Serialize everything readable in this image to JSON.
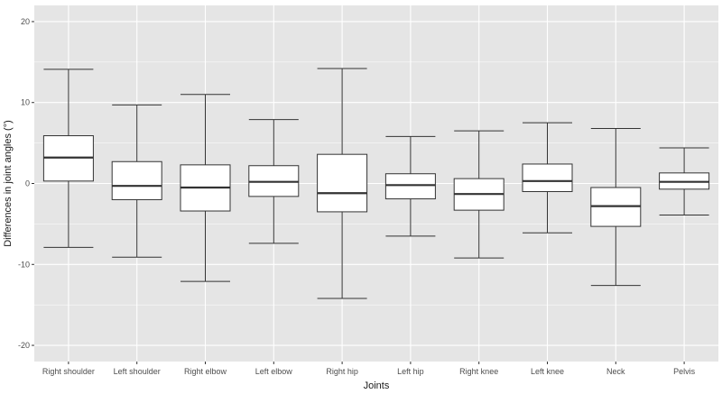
{
  "chart_data": {
    "type": "boxplot",
    "xlabel": "Joints",
    "ylabel": "Differences in joint angles (°)",
    "ylim": [
      -22,
      22
    ],
    "y_ticks": [
      -20,
      -10,
      0,
      10,
      20
    ],
    "grid": true,
    "colors": {
      "panel_bg": "#e5e5e5",
      "grid_major": "#ffffff",
      "box_fill": "#ffffff",
      "box_stroke": "#333333"
    },
    "categories": [
      "Right shoulder",
      "Left shoulder",
      "Right elbow",
      "Left elbow",
      "Right hip",
      "Left hip",
      "Right knee",
      "Left knee",
      "Neck",
      "Pelvis"
    ],
    "boxes": [
      {
        "label": "Right shoulder",
        "min": -7.9,
        "q1": 0.3,
        "median": 3.2,
        "q3": 5.9,
        "max": 14.1
      },
      {
        "label": "Left shoulder",
        "min": -9.1,
        "q1": -2.0,
        "median": -0.3,
        "q3": 2.7,
        "max": 9.7
      },
      {
        "label": "Right elbow",
        "min": -12.1,
        "q1": -3.4,
        "median": -0.5,
        "q3": 2.3,
        "max": 11.0
      },
      {
        "label": "Left elbow",
        "min": -7.4,
        "q1": -1.6,
        "median": 0.2,
        "q3": 2.2,
        "max": 7.9
      },
      {
        "label": "Right hip",
        "min": -14.2,
        "q1": -3.5,
        "median": -1.2,
        "q3": 3.6,
        "max": 14.2
      },
      {
        "label": "Left hip",
        "min": -6.5,
        "q1": -1.9,
        "median": -0.2,
        "q3": 1.2,
        "max": 5.8
      },
      {
        "label": "Right knee",
        "min": -9.2,
        "q1": -3.3,
        "median": -1.3,
        "q3": 0.6,
        "max": 6.5
      },
      {
        "label": "Left knee",
        "min": -6.1,
        "q1": -1.0,
        "median": 0.3,
        "q3": 2.4,
        "max": 7.5
      },
      {
        "label": "Neck",
        "min": -12.6,
        "q1": -5.3,
        "median": -2.8,
        "q3": -0.5,
        "max": 6.8
      },
      {
        "label": "Pelvis",
        "min": -3.9,
        "q1": -0.7,
        "median": 0.2,
        "q3": 1.3,
        "max": 4.4
      }
    ]
  }
}
